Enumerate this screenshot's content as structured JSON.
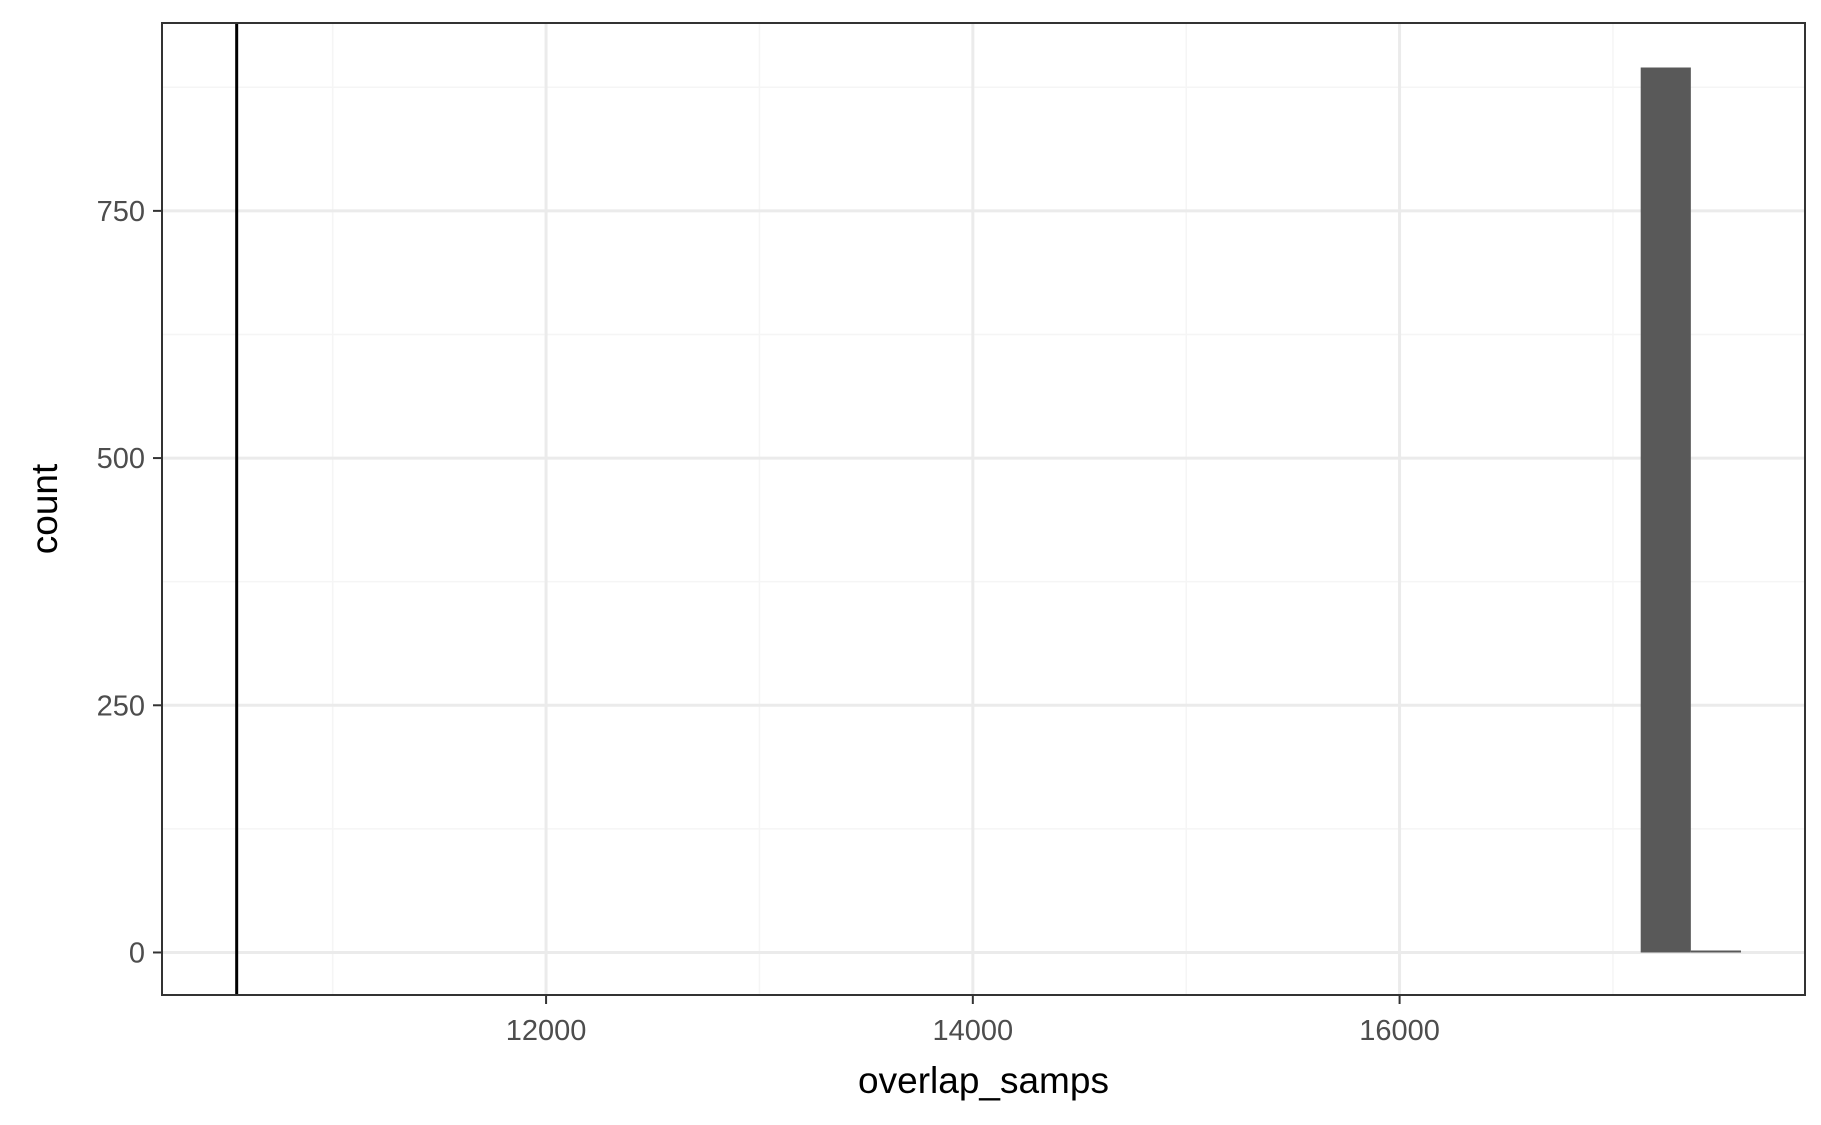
{
  "chart_data": {
    "type": "bar",
    "subtype": "histogram",
    "title": "",
    "xlabel": "overlap_samps",
    "ylabel": "count",
    "xlim": [
      10200,
      17900
    ],
    "ylim": [
      -43,
      940
    ],
    "x_ticks": [
      12000,
      14000,
      16000
    ],
    "x_minor_ticks": [
      11000,
      13000,
      15000,
      17000
    ],
    "y_ticks": [
      0,
      250,
      500,
      750
    ],
    "y_minor_ticks": [
      125,
      375,
      625,
      875
    ],
    "bins": [
      {
        "x_start": 17130,
        "x_end": 17365,
        "count": 895
      },
      {
        "x_start": 17365,
        "x_end": 17600,
        "count": 2
      }
    ],
    "vline": {
      "x": 10550
    },
    "grid": true,
    "legend": "none",
    "colors": {
      "bar": "#595959",
      "panel_background": "#ffffff",
      "grid_major": "#ebebeb",
      "grid_minor": "#f5f5f5",
      "border": "#333333",
      "vline": "#000000",
      "tick_label": "#4d4d4d",
      "axis_title": "#000000"
    }
  }
}
